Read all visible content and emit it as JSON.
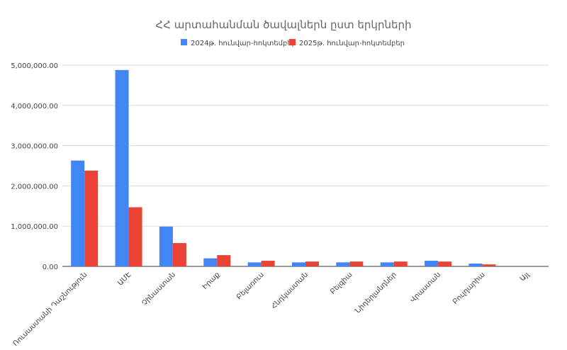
{
  "chart_data": {
    "type": "bar",
    "title": "ՀՀ արտահանման ծավալներն ըստ երկրների",
    "categories": [
      "Ռուսաստանի Դաշնություն",
      "ԱՄԷ",
      "Չինաստան",
      "Իրաք",
      "Բելառուս",
      "Հնդկաստան",
      "Բելգիա",
      "Նիդերլանդներ",
      "Վրաստան",
      "Բուլղարիա",
      "Այլ"
    ],
    "series": [
      {
        "name": "2024թ. հունվար-հոկտեմբեր",
        "color": "#4285f4",
        "values": [
          2630000,
          4880000,
          990000,
          200000,
          100000,
          100000,
          100000,
          100000,
          140000,
          70000,
          0
        ]
      },
      {
        "name": "2025թ. հունվար-հոկտեմբեր",
        "color": "#ea4335",
        "values": [
          2380000,
          1470000,
          580000,
          280000,
          140000,
          120000,
          120000,
          120000,
          120000,
          50000,
          0
        ]
      }
    ],
    "ylim": [
      0,
      5000000
    ],
    "yticks": [
      0,
      1000000,
      2000000,
      3000000,
      4000000,
      5000000
    ],
    "ytick_labels": [
      "0.00",
      "1,000,000.00",
      "2,000,000.00",
      "3,000,000.00",
      "4,000,000.00",
      "5,000,000.00"
    ],
    "legend_position": "top",
    "grid": true,
    "xlabel": "",
    "ylabel": ""
  }
}
